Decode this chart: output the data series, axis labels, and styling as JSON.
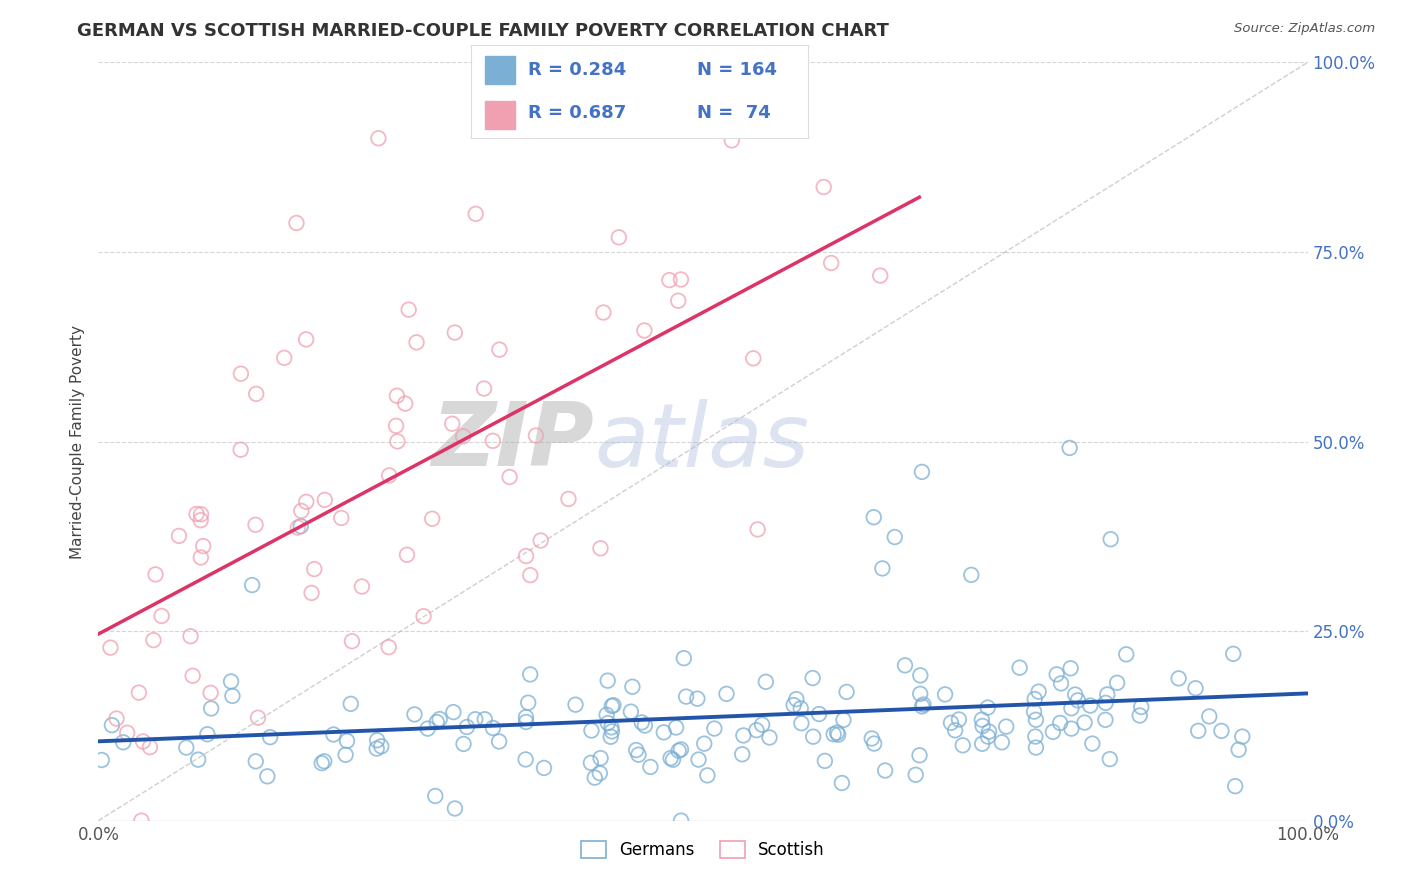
{
  "title": "GERMAN VS SCOTTISH MARRIED-COUPLE FAMILY POVERTY CORRELATION CHART",
  "source": "Source: ZipAtlas.com",
  "ylabel": "Married-Couple Family Poverty",
  "xlim": [
    0,
    1
  ],
  "ylim": [
    0,
    1
  ],
  "xtick_labels": [
    "0.0%",
    "100.0%"
  ],
  "ytick_labels": [
    "0.0%",
    "25.0%",
    "50.0%",
    "75.0%",
    "100.0%"
  ],
  "ytick_positions": [
    0,
    0.25,
    0.5,
    0.75,
    1.0
  ],
  "german_color": "#7bafd4",
  "scottish_color": "#f0a0b0",
  "scottish_fill_color": "#f8c8d0",
  "german_line_color": "#2255aa",
  "scottish_line_color": "#dd3366",
  "diagonal_color": "#bbbbbb",
  "legend_color": "#4472c4",
  "background_color": "#ffffff",
  "grid_color": "#cccccc",
  "german_R": 0.284,
  "german_N": 164,
  "scottish_R": 0.687,
  "scottish_N": 74,
  "legend_text_german": "R = 0.284   N = 164",
  "legend_text_scottish": "R = 0.687   N =  74"
}
